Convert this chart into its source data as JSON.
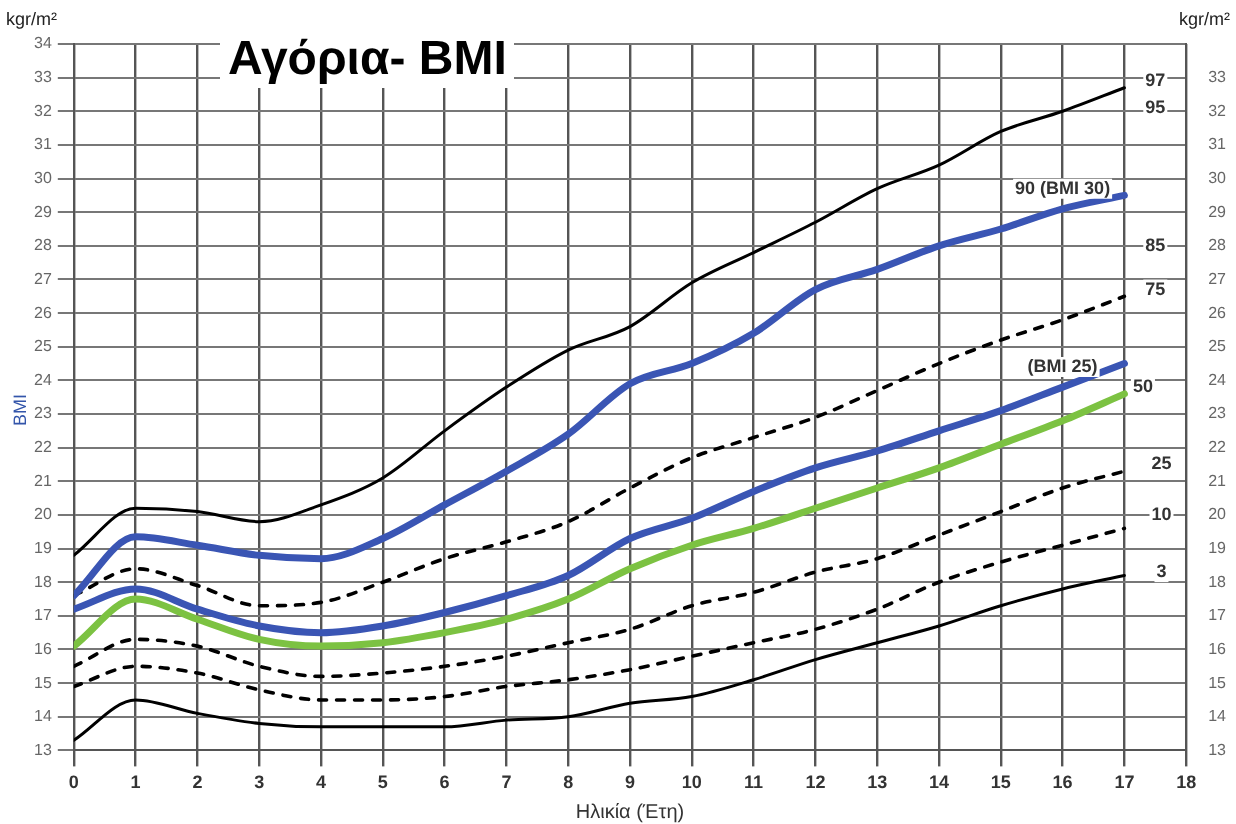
{
  "chart_data": {
    "type": "line",
    "title": "Αγόρια- BMI",
    "xlabel": "Ηλικία (Έτη)",
    "ylabel": "BMI",
    "y2label": "kgr/m²",
    "x": [
      0,
      1,
      2,
      3,
      4,
      5,
      6,
      7,
      8,
      9,
      10,
      11,
      12,
      13,
      14,
      15,
      16,
      17
    ],
    "series": [
      {
        "color": "#000000",
        "line_style": "solid",
        "values": [
          18.8,
          20.2,
          20.1,
          19.8,
          20.3,
          21.1,
          22.5,
          23.8,
          24.9,
          25.6,
          26.9,
          27.8,
          28.7,
          29.7,
          30.4,
          31.4,
          32.0,
          32.7
        ]
      },
      {
        "color": "#3a55b4",
        "line_style": "solid",
        "values": [
          17.6,
          19.35,
          19.1,
          18.8,
          18.7,
          19.3,
          20.3,
          21.3,
          22.4,
          23.9,
          24.5,
          25.4,
          26.7,
          27.3,
          28.0,
          28.5,
          29.1,
          29.5
        ]
      },
      {
        "color": "#000000",
        "line_style": "dashed",
        "values": [
          17.6,
          18.4,
          17.9,
          17.3,
          17.4,
          18.0,
          18.7,
          19.2,
          19.8,
          20.8,
          21.7,
          22.3,
          22.9,
          23.7,
          24.5,
          25.2,
          25.8,
          26.5
        ]
      },
      {
        "color": "#3a55b4",
        "line_style": "solid",
        "values": [
          17.2,
          17.8,
          17.2,
          16.7,
          16.5,
          16.7,
          17.1,
          17.6,
          18.2,
          19.3,
          19.9,
          20.7,
          21.4,
          21.9,
          22.5,
          23.1,
          23.8,
          24.5
        ]
      },
      {
        "color": "#7cc242",
        "line_style": "solid",
        "values": [
          16.1,
          17.5,
          16.9,
          16.3,
          16.1,
          16.2,
          16.5,
          16.9,
          17.5,
          18.4,
          19.1,
          19.6,
          20.2,
          20.8,
          21.4,
          22.1,
          22.8,
          23.6
        ]
      },
      {
        "color": "#000000",
        "line_style": "dashed",
        "values": [
          15.5,
          16.3,
          16.1,
          15.5,
          15.2,
          15.3,
          15.5,
          15.8,
          16.2,
          16.6,
          17.3,
          17.7,
          18.3,
          18.7,
          19.4,
          20.1,
          20.8,
          21.3
        ]
      },
      {
        "color": "#000000",
        "line_style": "dashed",
        "values": [
          14.9,
          15.5,
          15.3,
          14.8,
          14.5,
          14.5,
          14.6,
          14.9,
          15.1,
          15.4,
          15.8,
          16.2,
          16.6,
          17.2,
          18.0,
          18.6,
          19.1,
          19.6
        ]
      },
      {
        "color": "#000000",
        "line_style": "solid",
        "values": [
          13.3,
          14.5,
          14.1,
          13.8,
          13.7,
          13.7,
          13.7,
          13.9,
          14.0,
          14.4,
          14.6,
          15.1,
          15.7,
          16.2,
          16.7,
          17.3,
          17.8,
          18.2
        ]
      }
    ],
    "xlim": [
      0,
      18
    ],
    "xticks": [
      0,
      1,
      2,
      3,
      4,
      5,
      6,
      7,
      8,
      9,
      10,
      11,
      12,
      13,
      14,
      15,
      16,
      17,
      18
    ],
    "ylim": [
      13,
      34
    ],
    "yticks": [
      13,
      14,
      15,
      16,
      17,
      18,
      19,
      20,
      21,
      22,
      23,
      24,
      25,
      26,
      27,
      28,
      29,
      30,
      31,
      32,
      33,
      34
    ],
    "y2lim": [
      13,
      34
    ],
    "y2ticks": [
      13,
      14,
      15,
      16,
      17,
      18,
      19,
      20,
      21,
      22,
      23,
      24,
      25,
      26,
      27,
      28,
      29,
      30,
      31,
      32,
      33
    ],
    "grid": true,
    "legend": false,
    "marker": "none",
    "annotations": [
      "kgr/m²",
      {
        "text": "97",
        "x": 17.5,
        "y": 32.9
      },
      {
        "text": "95",
        "x": 17.5,
        "y": 32.1
      },
      {
        "text": "90 (BMI 30)",
        "x": 16,
        "y": 29.1
      },
      {
        "text": "85",
        "x": 17.5,
        "y": 28
      },
      {
        "text": "75",
        "x": 17.5,
        "y": 26.7
      },
      {
        "text": "(BMI 25)",
        "x": 16,
        "y": 23.8
      },
      {
        "text": "50",
        "x": 17.3,
        "y": 23.8
      },
      {
        "text": "25",
        "x": 17.6,
        "y": 21.5
      },
      {
        "text": "10",
        "x": 17.6,
        "y": 20
      },
      {
        "text": "3",
        "x": 17.6,
        "y": 18.3
      }
    ]
  }
}
